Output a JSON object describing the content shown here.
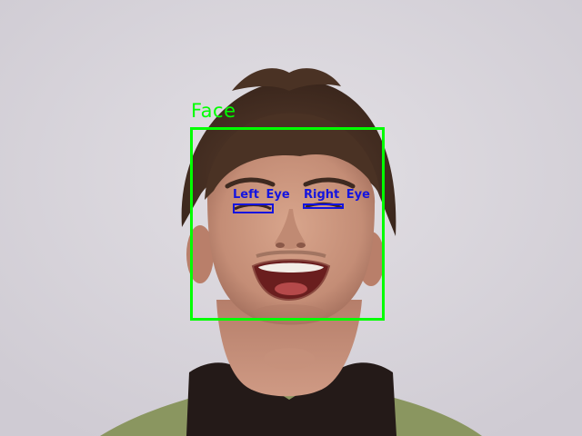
{
  "detections": {
    "face": {
      "label": "Face",
      "color": "#00ff00"
    },
    "left_eye": {
      "label": "Left Eye",
      "color": "#1414e0"
    },
    "right_eye": {
      "label": "Right Eye",
      "color": "#1414e0"
    }
  }
}
